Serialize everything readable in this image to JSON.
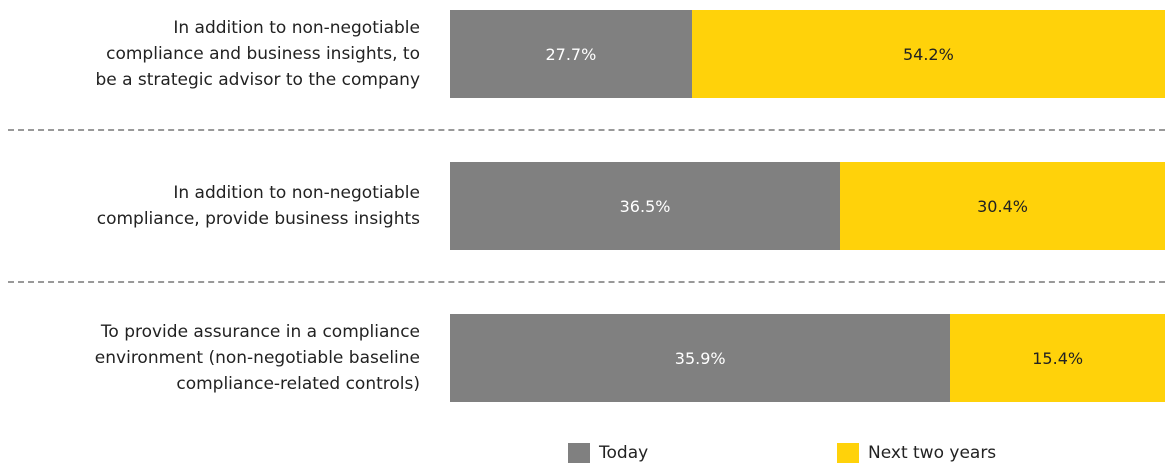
{
  "chart_data": {
    "type": "stacked-bar-horizontal",
    "categories": [
      "In addition to non-negotiable\ncompliance and business insights, to\nbe a strategic advisor to the company",
      "In addition to non-negotiable\ncompliance, provide business insights",
      "To provide assurance in a compliance\nenvironment (non-negotiable baseline\ncompliance-related controls)"
    ],
    "series": [
      {
        "name": "Today",
        "color": "#808080",
        "values": [
          27.7,
          36.5,
          35.9
        ],
        "value_labels": [
          "27.7%",
          "36.5%",
          "35.9%"
        ]
      },
      {
        "name": "Next two years",
        "color": "#ffd20a",
        "values": [
          54.2,
          30.4,
          15.4
        ],
        "value_labels": [
          "54.2%",
          "30.4%",
          "15.4%"
        ]
      }
    ]
  }
}
